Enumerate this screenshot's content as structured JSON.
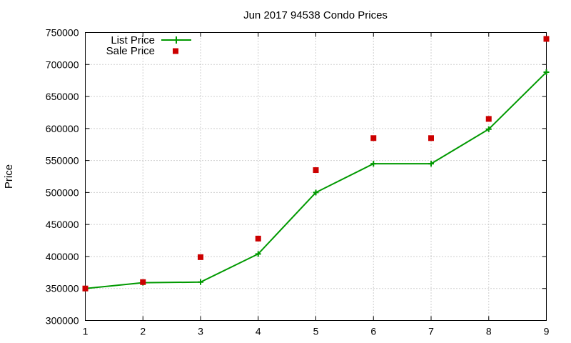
{
  "chart_data": {
    "type": "line",
    "title": "Jun 2017 94538 Condo Prices",
    "xlabel": "",
    "ylabel": "Price",
    "xlim": [
      1,
      9
    ],
    "ylim": [
      300000,
      750000
    ],
    "xticks": [
      "1",
      "2",
      "3",
      "4",
      "5",
      "6",
      "7",
      "8",
      "9"
    ],
    "yticks": [
      "300000",
      "350000",
      "400000",
      "450000",
      "500000",
      "550000",
      "600000",
      "650000",
      "700000",
      "750000"
    ],
    "grid": true,
    "legend_position": "top-left",
    "series": [
      {
        "name": "List Price",
        "style": "line-with-plus-markers",
        "color": "#009900",
        "x": [
          1,
          2,
          3,
          4,
          5,
          6,
          7,
          8,
          9
        ],
        "values": [
          350000,
          359000,
          360000,
          404000,
          500000,
          545000,
          545000,
          599000,
          688000
        ]
      },
      {
        "name": "Sale Price",
        "style": "square-markers",
        "color": "#cc0000",
        "x": [
          1,
          2,
          3,
          4,
          5,
          6,
          7,
          8,
          9
        ],
        "values": [
          350000,
          360000,
          399000,
          428000,
          535000,
          585000,
          585000,
          615000,
          740000
        ]
      }
    ]
  }
}
